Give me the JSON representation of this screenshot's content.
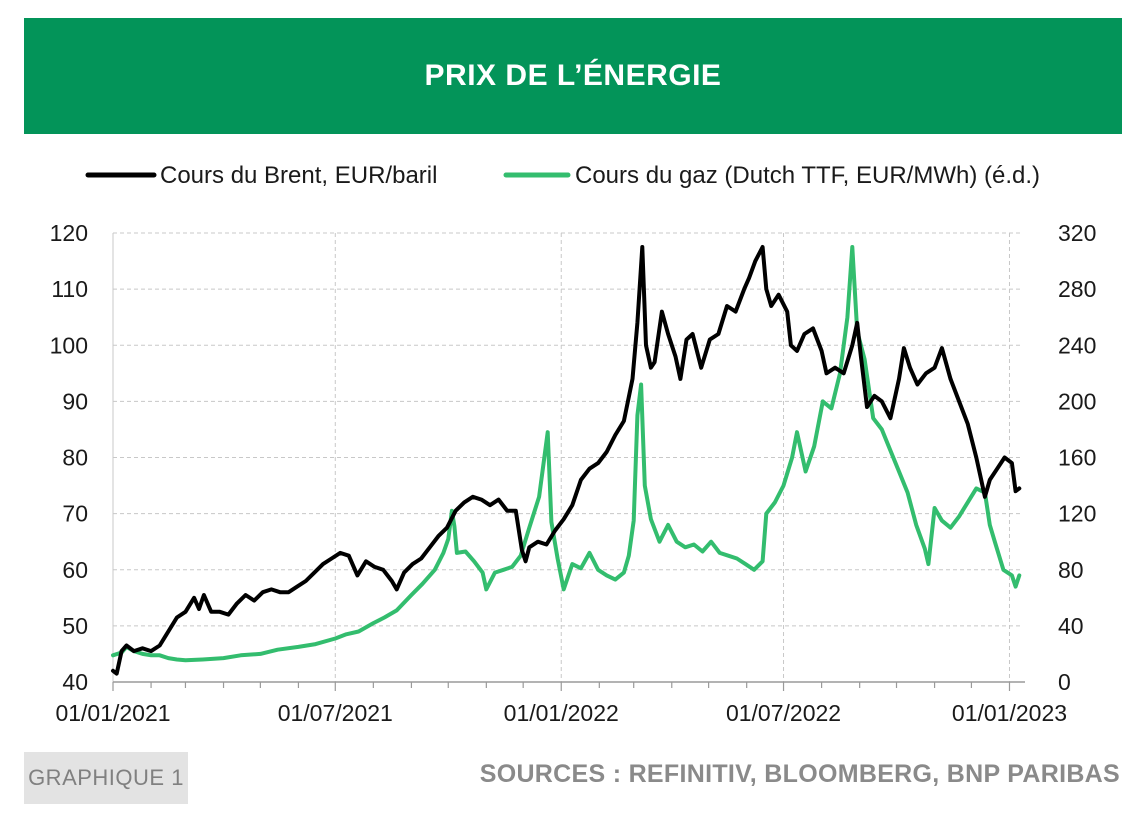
{
  "header": {
    "title": "PRIX DE L’ÉNERGIE"
  },
  "footer": {
    "badge": "GRAPHIQUE 1",
    "sources": "SOURCES : REFINITIV, BLOOMBERG, BNP PARIBAS"
  },
  "colors": {
    "banner": "#039459",
    "brent": "#000000",
    "gas": "#33bd6e",
    "grid": "#c8c8c8"
  },
  "chart_data": {
    "type": "line",
    "legend": "top",
    "grid": true,
    "x_ticks": [
      "01/01/2021",
      "01/07/2021",
      "01/01/2022",
      "01/07/2022",
      "01/01/2023"
    ],
    "x_range": [
      "2021-01-01",
      "2023-01-12"
    ],
    "y_left": {
      "range": [
        40,
        120
      ],
      "ticks": [
        "40",
        "50",
        "60",
        "70",
        "80",
        "90",
        "100",
        "110",
        "120"
      ]
    },
    "y_right": {
      "range": [
        0,
        320
      ],
      "ticks": [
        "0",
        "40",
        "80",
        "120",
        "160",
        "200",
        "240",
        "280",
        "320"
      ]
    },
    "series": [
      {
        "name": "Cours du Brent, EUR/baril",
        "axis": "left",
        "color": "#000000",
        "points": [
          [
            "2021-01-01",
            42
          ],
          [
            "2021-01-04",
            41.5
          ],
          [
            "2021-01-08",
            45.5
          ],
          [
            "2021-01-12",
            46.5
          ],
          [
            "2021-01-18",
            45.5
          ],
          [
            "2021-01-25",
            46
          ],
          [
            "2021-02-01",
            45.5
          ],
          [
            "2021-02-08",
            46.5
          ],
          [
            "2021-02-15",
            49
          ],
          [
            "2021-02-22",
            51.5
          ],
          [
            "2021-03-01",
            52.5
          ],
          [
            "2021-03-08",
            55
          ],
          [
            "2021-03-12",
            53
          ],
          [
            "2021-03-16",
            55.5
          ],
          [
            "2021-03-22",
            52.5
          ],
          [
            "2021-03-29",
            52.5
          ],
          [
            "2021-04-05",
            52
          ],
          [
            "2021-04-12",
            54
          ],
          [
            "2021-04-19",
            55.5
          ],
          [
            "2021-04-26",
            54.5
          ],
          [
            "2021-05-03",
            56
          ],
          [
            "2021-05-10",
            56.5
          ],
          [
            "2021-05-17",
            56
          ],
          [
            "2021-05-24",
            56
          ],
          [
            "2021-05-31",
            57
          ],
          [
            "2021-06-07",
            58
          ],
          [
            "2021-06-14",
            59.5
          ],
          [
            "2021-06-21",
            61
          ],
          [
            "2021-06-28",
            62
          ],
          [
            "2021-07-05",
            63
          ],
          [
            "2021-07-12",
            62.5
          ],
          [
            "2021-07-19",
            59
          ],
          [
            "2021-07-26",
            61.5
          ],
          [
            "2021-08-02",
            60.5
          ],
          [
            "2021-08-09",
            60
          ],
          [
            "2021-08-16",
            58
          ],
          [
            "2021-08-20",
            56.5
          ],
          [
            "2021-08-26",
            59.5
          ],
          [
            "2021-09-02",
            61
          ],
          [
            "2021-09-09",
            62
          ],
          [
            "2021-09-16",
            64
          ],
          [
            "2021-09-23",
            66
          ],
          [
            "2021-09-30",
            67.5
          ],
          [
            "2021-10-07",
            70.5
          ],
          [
            "2021-10-14",
            72
          ],
          [
            "2021-10-21",
            73
          ],
          [
            "2021-10-28",
            72.5
          ],
          [
            "2021-11-04",
            71.5
          ],
          [
            "2021-11-11",
            72.5
          ],
          [
            "2021-11-18",
            70.5
          ],
          [
            "2021-11-25",
            70.5
          ],
          [
            "2021-11-30",
            63.5
          ],
          [
            "2021-12-03",
            61.5
          ],
          [
            "2021-12-06",
            64
          ],
          [
            "2021-12-13",
            65
          ],
          [
            "2021-12-20",
            64.5
          ],
          [
            "2021-12-27",
            67
          ],
          [
            "2022-01-03",
            69
          ],
          [
            "2022-01-10",
            71.5
          ],
          [
            "2022-01-17",
            76
          ],
          [
            "2022-01-24",
            78
          ],
          [
            "2022-01-31",
            79
          ],
          [
            "2022-02-07",
            81
          ],
          [
            "2022-02-14",
            84
          ],
          [
            "2022-02-21",
            86.5
          ],
          [
            "2022-02-28",
            94
          ],
          [
            "2022-03-04",
            104
          ],
          [
            "2022-03-08",
            117.5
          ],
          [
            "2022-03-11",
            100
          ],
          [
            "2022-03-15",
            96
          ],
          [
            "2022-03-18",
            97
          ],
          [
            "2022-03-24",
            106
          ],
          [
            "2022-03-29",
            102
          ],
          [
            "2022-04-04",
            98
          ],
          [
            "2022-04-08",
            94
          ],
          [
            "2022-04-13",
            101
          ],
          [
            "2022-04-18",
            102
          ],
          [
            "2022-04-25",
            96
          ],
          [
            "2022-05-02",
            101
          ],
          [
            "2022-05-09",
            102
          ],
          [
            "2022-05-16",
            107
          ],
          [
            "2022-05-23",
            106
          ],
          [
            "2022-05-30",
            110
          ],
          [
            "2022-06-03",
            112
          ],
          [
            "2022-06-08",
            115
          ],
          [
            "2022-06-14",
            117.5
          ],
          [
            "2022-06-17",
            110
          ],
          [
            "2022-06-21",
            107
          ],
          [
            "2022-06-27",
            109
          ],
          [
            "2022-07-04",
            106
          ],
          [
            "2022-07-07",
            100
          ],
          [
            "2022-07-12",
            99
          ],
          [
            "2022-07-18",
            102
          ],
          [
            "2022-07-25",
            103
          ],
          [
            "2022-08-01",
            99
          ],
          [
            "2022-08-05",
            95
          ],
          [
            "2022-08-12",
            96
          ],
          [
            "2022-08-19",
            95
          ],
          [
            "2022-08-26",
            100
          ],
          [
            "2022-08-30",
            104
          ],
          [
            "2022-09-02",
            98
          ],
          [
            "2022-09-07",
            89
          ],
          [
            "2022-09-13",
            91
          ],
          [
            "2022-09-19",
            90
          ],
          [
            "2022-09-26",
            87
          ],
          [
            "2022-10-03",
            94
          ],
          [
            "2022-10-07",
            99.5
          ],
          [
            "2022-10-12",
            96
          ],
          [
            "2022-10-18",
            93
          ],
          [
            "2022-10-25",
            95
          ],
          [
            "2022-11-01",
            96
          ],
          [
            "2022-11-07",
            99.5
          ],
          [
            "2022-11-14",
            94
          ],
          [
            "2022-11-21",
            90
          ],
          [
            "2022-11-28",
            86
          ],
          [
            "2022-12-05",
            80
          ],
          [
            "2022-12-08",
            77
          ],
          [
            "2022-12-12",
            73
          ],
          [
            "2022-12-16",
            76
          ],
          [
            "2022-12-22",
            78
          ],
          [
            "2022-12-28",
            80
          ],
          [
            "2023-01-03",
            79
          ],
          [
            "2023-01-06",
            74
          ],
          [
            "2023-01-09",
            74.5
          ]
        ]
      },
      {
        "name": "Cours du gaz (Dutch TTF, EUR/MWh) (é.d.)",
        "axis": "right",
        "color": "#33bd6e",
        "points": [
          [
            "2021-01-01",
            19
          ],
          [
            "2021-01-08",
            21
          ],
          [
            "2021-01-12",
            25
          ],
          [
            "2021-01-18",
            22
          ],
          [
            "2021-01-25",
            20
          ],
          [
            "2021-02-01",
            19
          ],
          [
            "2021-02-08",
            19
          ],
          [
            "2021-02-15",
            17
          ],
          [
            "2021-02-22",
            16
          ],
          [
            "2021-03-01",
            15.5
          ],
          [
            "2021-03-15",
            16
          ],
          [
            "2021-04-01",
            17
          ],
          [
            "2021-04-15",
            19
          ],
          [
            "2021-05-01",
            20
          ],
          [
            "2021-05-15",
            23
          ],
          [
            "2021-06-01",
            25
          ],
          [
            "2021-06-15",
            27
          ],
          [
            "2021-07-01",
            31
          ],
          [
            "2021-07-10",
            34
          ],
          [
            "2021-07-20",
            36
          ],
          [
            "2021-08-01",
            42
          ],
          [
            "2021-08-10",
            46
          ],
          [
            "2021-08-20",
            51
          ],
          [
            "2021-09-01",
            62
          ],
          [
            "2021-09-10",
            70
          ],
          [
            "2021-09-20",
            80
          ],
          [
            "2021-09-27",
            92
          ],
          [
            "2021-10-01",
            102
          ],
          [
            "2021-10-04",
            122
          ],
          [
            "2021-10-06",
            111
          ],
          [
            "2021-10-08",
            92
          ],
          [
            "2021-10-15",
            93
          ],
          [
            "2021-10-22",
            86
          ],
          [
            "2021-10-29",
            78
          ],
          [
            "2021-11-01",
            66
          ],
          [
            "2021-11-08",
            78
          ],
          [
            "2021-11-15",
            80
          ],
          [
            "2021-11-22",
            82
          ],
          [
            "2021-11-29",
            90
          ],
          [
            "2021-12-06",
            110
          ],
          [
            "2021-12-14",
            132
          ],
          [
            "2021-12-21",
            178
          ],
          [
            "2021-12-24",
            114
          ],
          [
            "2021-12-29",
            88
          ],
          [
            "2022-01-03",
            66
          ],
          [
            "2022-01-10",
            84
          ],
          [
            "2022-01-17",
            81
          ],
          [
            "2022-01-24",
            92
          ],
          [
            "2022-01-31",
            80
          ],
          [
            "2022-02-07",
            76
          ],
          [
            "2022-02-14",
            73
          ],
          [
            "2022-02-21",
            78
          ],
          [
            "2022-02-25",
            90
          ],
          [
            "2022-03-01",
            115
          ],
          [
            "2022-03-04",
            190
          ],
          [
            "2022-03-07",
            212
          ],
          [
            "2022-03-10",
            140
          ],
          [
            "2022-03-15",
            116
          ],
          [
            "2022-03-22",
            100
          ],
          [
            "2022-03-29",
            112
          ],
          [
            "2022-04-05",
            100
          ],
          [
            "2022-04-12",
            96
          ],
          [
            "2022-04-19",
            98
          ],
          [
            "2022-04-26",
            93
          ],
          [
            "2022-05-03",
            100
          ],
          [
            "2022-05-10",
            92
          ],
          [
            "2022-05-17",
            90
          ],
          [
            "2022-05-24",
            88
          ],
          [
            "2022-05-31",
            84
          ],
          [
            "2022-06-07",
            80
          ],
          [
            "2022-06-14",
            86
          ],
          [
            "2022-06-17",
            120
          ],
          [
            "2022-06-24",
            128
          ],
          [
            "2022-07-01",
            140
          ],
          [
            "2022-07-08",
            160
          ],
          [
            "2022-07-12",
            178
          ],
          [
            "2022-07-19",
            150
          ],
          [
            "2022-07-26",
            168
          ],
          [
            "2022-08-02",
            200
          ],
          [
            "2022-08-09",
            195
          ],
          [
            "2022-08-16",
            220
          ],
          [
            "2022-08-22",
            260
          ],
          [
            "2022-08-26",
            310
          ],
          [
            "2022-08-30",
            250
          ],
          [
            "2022-09-05",
            230
          ],
          [
            "2022-09-12",
            188
          ],
          [
            "2022-09-19",
            180
          ],
          [
            "2022-09-26",
            165
          ],
          [
            "2022-10-03",
            150
          ],
          [
            "2022-10-10",
            135
          ],
          [
            "2022-10-17",
            112
          ],
          [
            "2022-10-24",
            95
          ],
          [
            "2022-10-27",
            84
          ],
          [
            "2022-11-01",
            124
          ],
          [
            "2022-11-07",
            115
          ],
          [
            "2022-11-14",
            110
          ],
          [
            "2022-11-21",
            118
          ],
          [
            "2022-11-28",
            128
          ],
          [
            "2022-12-05",
            138
          ],
          [
            "2022-12-12",
            135
          ],
          [
            "2022-12-16",
            112
          ],
          [
            "2022-12-20",
            100
          ],
          [
            "2022-12-27",
            80
          ],
          [
            "2023-01-03",
            76
          ],
          [
            "2023-01-06",
            68
          ],
          [
            "2023-01-09",
            76
          ]
        ]
      }
    ]
  }
}
